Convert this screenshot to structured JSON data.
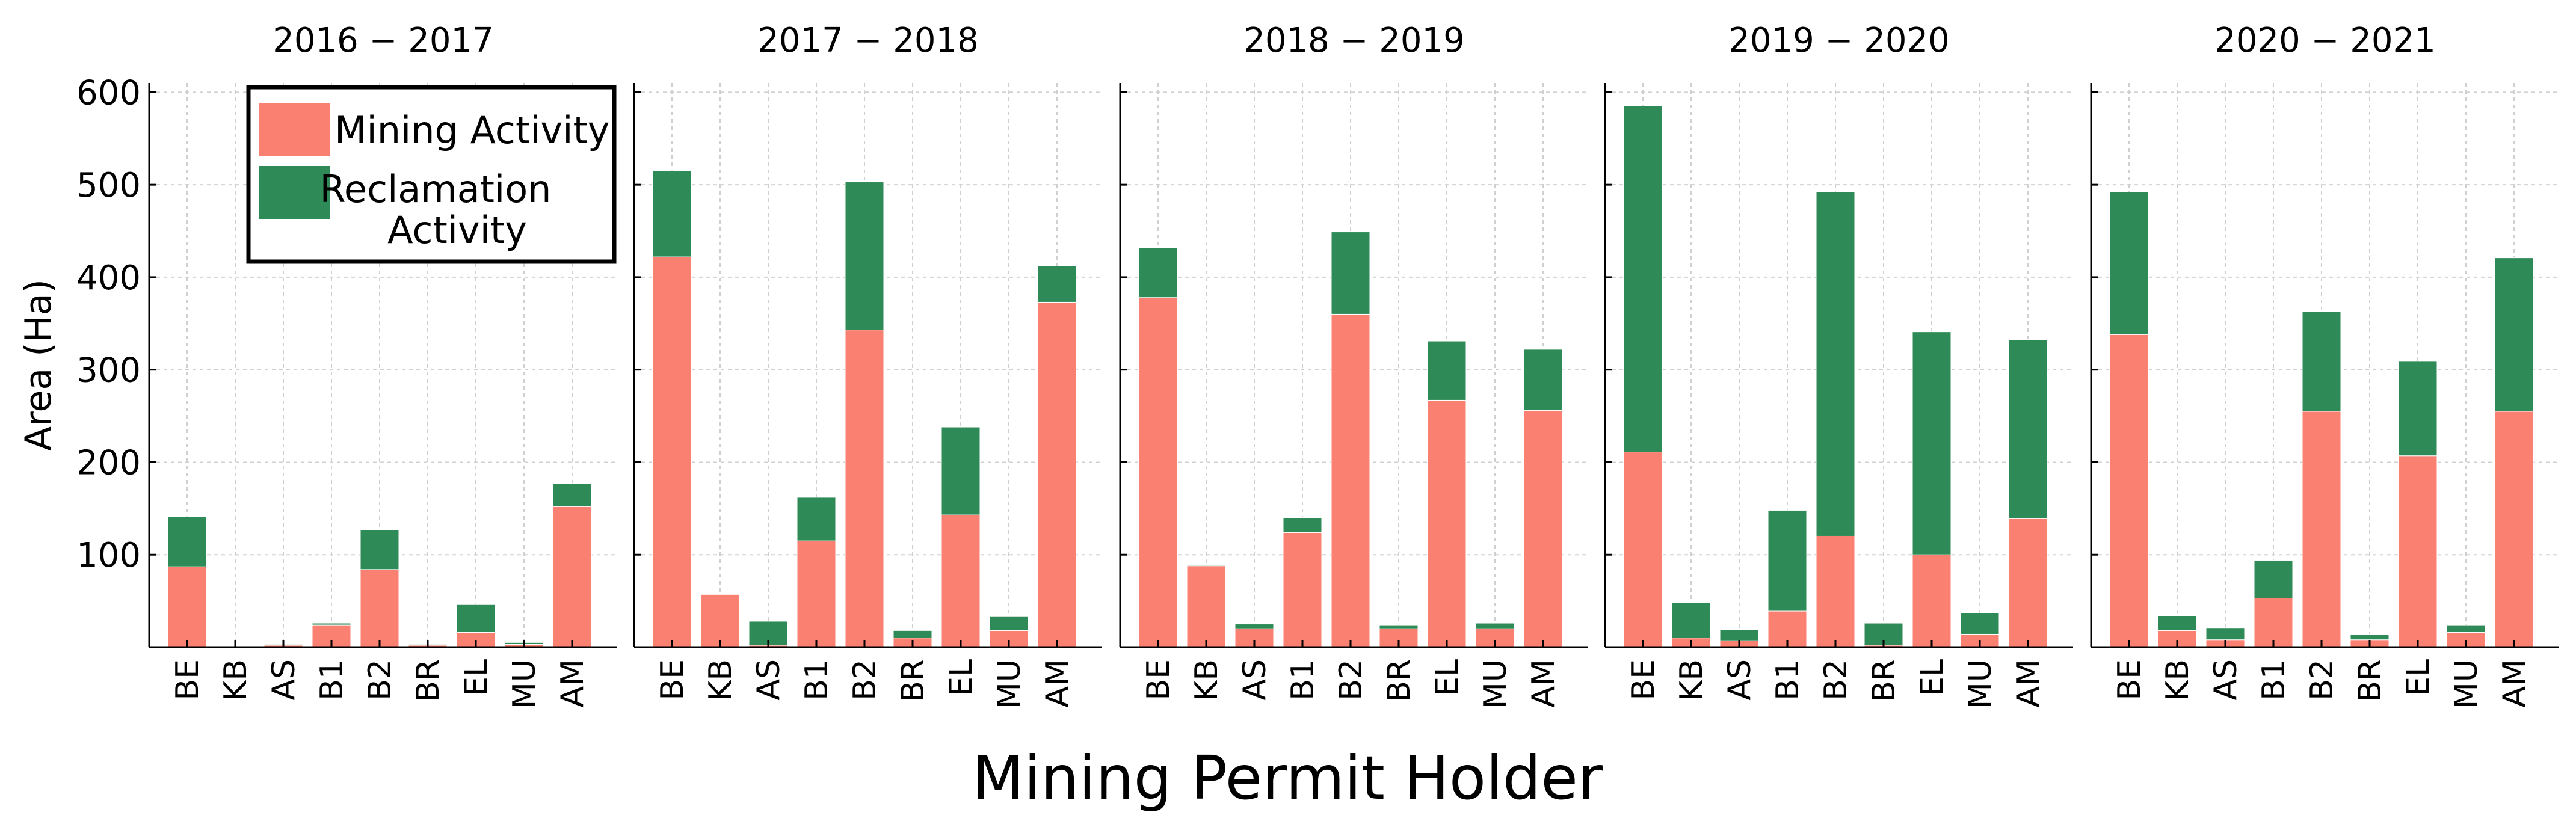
{
  "chart_data": {
    "type": "bar",
    "stacked": true,
    "ylabel": "Area (Ha)",
    "xlabel": "Mining Permit Holder",
    "ylim": [
      0,
      610
    ],
    "yticks": [
      100,
      200,
      300,
      400,
      500,
      600
    ],
    "grid": true,
    "categories": [
      "BE",
      "KB",
      "AS",
      "B1",
      "B2",
      "BR",
      "EL",
      "MU",
      "AM"
    ],
    "legend": {
      "position": "top-right of first panel",
      "entries": [
        {
          "name": "Mining Activity",
          "lines": [
            "Mining Activity"
          ],
          "color": "#fa8072"
        },
        {
          "name": "Reclamation Activity",
          "lines": [
            "Reclamation",
            "Activity"
          ],
          "color": "#2e8b57"
        }
      ]
    },
    "panels": [
      {
        "title": "2016 − 2017",
        "series": [
          {
            "name": "Mining Activity",
            "color": "#fa8072",
            "values": [
              87,
              0,
              2,
              24,
              84,
              2,
              16,
              3,
              152
            ]
          },
          {
            "name": "Reclamation Activity",
            "color": "#2e8b57",
            "values": [
              54,
              0,
              1,
              2,
              43,
              1,
              30,
              2,
              25
            ]
          }
        ]
      },
      {
        "title": "2017 − 2018",
        "series": [
          {
            "name": "Mining Activity",
            "color": "#fa8072",
            "values": [
              422,
              57,
              2,
              115,
              343,
              10,
              143,
              18,
              373
            ]
          },
          {
            "name": "Reclamation Activity",
            "color": "#2e8b57",
            "values": [
              93,
              0,
              26,
              47,
              160,
              8,
              95,
              15,
              39
            ]
          }
        ]
      },
      {
        "title": "2018 − 2019",
        "series": [
          {
            "name": "Mining Activity",
            "color": "#fa8072",
            "values": [
              378,
              88,
              20,
              124,
              360,
              20,
              267,
              20,
              256
            ]
          },
          {
            "name": "Reclamation Activity",
            "color": "#2e8b57",
            "values": [
              54,
              1,
              5,
              16,
              89,
              4,
              64,
              6,
              66
            ]
          }
        ]
      },
      {
        "title": "2019 − 2020",
        "series": [
          {
            "name": "Mining Activity",
            "color": "#fa8072",
            "values": [
              211,
              10,
              7,
              39,
              120,
              2,
              100,
              14,
              139
            ]
          },
          {
            "name": "Reclamation Activity",
            "color": "#2e8b57",
            "values": [
              374,
              38,
              12,
              109,
              372,
              24,
              241,
              23,
              193
            ]
          }
        ]
      },
      {
        "title": "2020 − 2021",
        "series": [
          {
            "name": "Mining Activity",
            "color": "#fa8072",
            "values": [
              338,
              18,
              8,
              53,
              255,
              8,
              207,
              16,
              255
            ]
          },
          {
            "name": "Reclamation Activity",
            "color": "#2e8b57",
            "values": [
              154,
              16,
              13,
              41,
              108,
              6,
              102,
              8,
              166
            ]
          }
        ]
      }
    ]
  }
}
